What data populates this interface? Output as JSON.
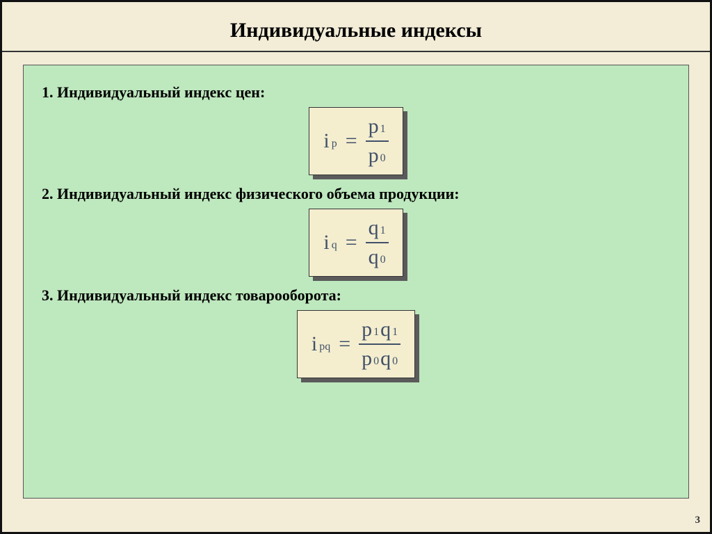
{
  "title": "Индивидуальные индексы",
  "page_number": "3",
  "colors": {
    "slide_bg": "#f3edd8",
    "panel_bg": "#bee8be",
    "formula_bg": "#f4eecf",
    "formula_shadow": "#5b5b5b",
    "formula_text": "#425169"
  },
  "items": [
    {
      "label": "1. Индивидуальный индекс цен:",
      "lhs_sym": "i",
      "lhs_sub": "p",
      "num": [
        {
          "sym": "p",
          "sub": "1"
        }
      ],
      "den": [
        {
          "sym": "p",
          "sub": "0"
        }
      ]
    },
    {
      "label": "2. Индивидуальный индекс физического объема продукции:",
      "lhs_sym": "i",
      "lhs_sub": "q",
      "num": [
        {
          "sym": "q",
          "sub": "1"
        }
      ],
      "den": [
        {
          "sym": "q",
          "sub": "0"
        }
      ]
    },
    {
      "label": "3. Индивидуальный индекс товарооборота:",
      "lhs_sym": "i",
      "lhs_sub": "pq",
      "num": [
        {
          "sym": "p",
          "sub": "1"
        },
        {
          "sym": "q",
          "sub": "1"
        }
      ],
      "den": [
        {
          "sym": "p",
          "sub": "0"
        },
        {
          "sym": "q",
          "sub": "0"
        }
      ]
    }
  ]
}
